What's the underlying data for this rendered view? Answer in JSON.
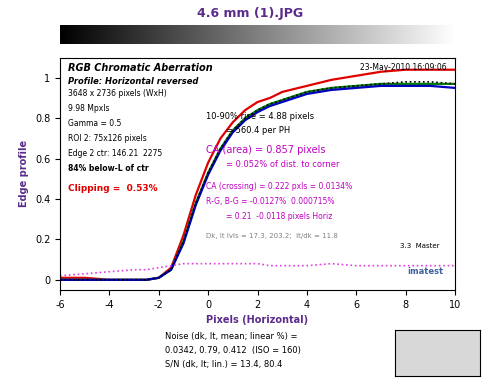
{
  "chart_data": {
    "type": "line",
    "title": "4.6 mm (1).JPG",
    "xlabel": "Pixels (Horizontal)",
    "ylabel": "Edge profile",
    "x": [
      -6,
      -5,
      -4,
      -3,
      -2.5,
      -2,
      -1.5,
      -1,
      -0.5,
      0,
      0.5,
      1,
      1.5,
      2,
      2.5,
      3,
      4,
      5,
      6,
      7,
      8,
      9,
      10
    ],
    "series": [
      {
        "color": "#e00000",
        "line_style": "solid",
        "values": [
          0.01,
          0.01,
          0.0,
          0.0,
          0.0,
          0.01,
          0.06,
          0.22,
          0.42,
          0.58,
          0.7,
          0.78,
          0.84,
          0.88,
          0.9,
          0.93,
          0.96,
          0.99,
          1.01,
          1.03,
          1.04,
          1.04,
          1.04
        ]
      },
      {
        "color": "#008000",
        "line_style": "solid",
        "values": [
          0.0,
          0.0,
          0.0,
          0.0,
          0.0,
          0.01,
          0.05,
          0.19,
          0.38,
          0.53,
          0.65,
          0.74,
          0.8,
          0.84,
          0.87,
          0.89,
          0.93,
          0.95,
          0.96,
          0.97,
          0.97,
          0.97,
          0.97
        ]
      },
      {
        "color": "#0000c0",
        "line_style": "solid",
        "values": [
          0.0,
          0.0,
          0.0,
          0.0,
          0.0,
          0.01,
          0.05,
          0.18,
          0.37,
          0.52,
          0.64,
          0.73,
          0.79,
          0.83,
          0.86,
          0.88,
          0.92,
          0.94,
          0.95,
          0.96,
          0.96,
          0.96,
          0.95
        ]
      },
      {
        "color": "#000000",
        "line_style": "dotted",
        "values": [
          0.0,
          0.0,
          0.0,
          0.0,
          0.0,
          0.01,
          0.05,
          0.19,
          0.38,
          0.53,
          0.65,
          0.74,
          0.8,
          0.84,
          0.87,
          0.89,
          0.93,
          0.95,
          0.96,
          0.97,
          0.98,
          0.98,
          0.97
        ]
      },
      {
        "color": "#e040e0",
        "line_style": "dotted",
        "values": [
          0.02,
          0.03,
          0.04,
          0.05,
          0.05,
          0.06,
          0.07,
          0.08,
          0.08,
          0.08,
          0.08,
          0.08,
          0.08,
          0.08,
          0.07,
          0.07,
          0.07,
          0.08,
          0.07,
          0.07,
          0.07,
          0.07,
          0.07
        ]
      }
    ],
    "xlim": [
      -6,
      10
    ],
    "xticks": [
      -6,
      -4,
      -2,
      0,
      2,
      4,
      6,
      8,
      10
    ],
    "ylim": [
      -0.05,
      1.1
    ],
    "yticks": [
      0,
      0.2,
      0.4,
      0.6,
      0.8,
      1
    ],
    "grid": false,
    "annotations": [
      "RGB Chromatic Aberration",
      "Profile: Horizontal reversed",
      "23-May-2010 16:09:06",
      "3648 x 2736 pixels (WxH)",
      "9.98 Mpxls",
      "Gamma = 0.5",
      "ROI 2: 75x126 pixels",
      "Edge 2 ctr: 146.21  2275",
      "84% below-L of ctr",
      "Clipping =  0.53%",
      "10-90% rise = 4.88 pixels",
      "= 560.4 per PH",
      "CA (area) = 0.857 pixels",
      "= 0.052% of dist. to corner",
      "CA (crossing) = 0.222 pxls = 0.0134%",
      "R-G, B-G = -0.0127%  0.000715%",
      "= 0.21  -0.0118 pixels Horiz",
      "Dk, lt lvls = 17.3, 203.2;  lt/dk = 11.8",
      "3.3  Master",
      "imatest"
    ],
    "notes": [
      "Noise (dk, lt, mean; linear %) =",
      "0.0342, 0.79, 0.412  (ISO = 160)",
      "S/N (dk, lt; lin.) = 13.4, 80.4"
    ]
  }
}
